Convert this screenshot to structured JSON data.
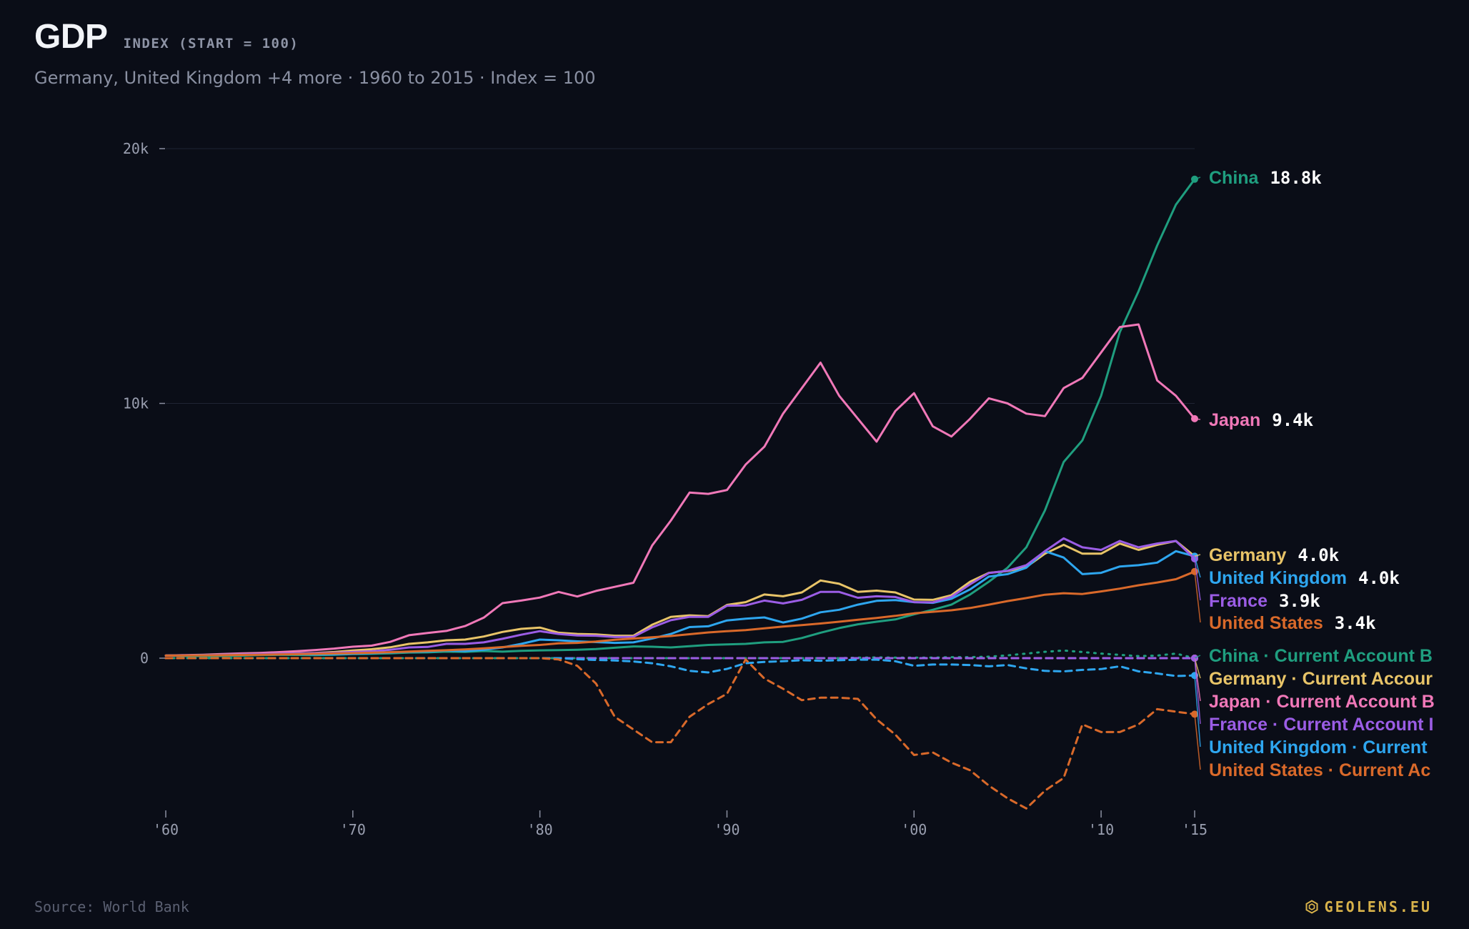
{
  "header": {
    "title": "GDP",
    "tag": "INDEX (START = 100)",
    "subtitle": "Germany, United Kingdom +4 more · 1960 to 2015 · Index = 100"
  },
  "footer": {
    "source": "Source: World Bank",
    "brand": "GEOLENS.EU",
    "brand_icon": "hexagon-logo-icon"
  },
  "colors": {
    "background": "#0a0d17",
    "China": "#1f9e7f",
    "Japan": "#f078b8",
    "Germany": "#e8c468",
    "United Kingdom": "#2ea6ef",
    "France": "#9b5de5",
    "United States": "#d9692a"
  },
  "chart_data": {
    "type": "line",
    "x": [
      1960,
      1961,
      1962,
      1963,
      1964,
      1965,
      1966,
      1967,
      1968,
      1969,
      1970,
      1971,
      1972,
      1973,
      1974,
      1975,
      1976,
      1977,
      1978,
      1979,
      1980,
      1981,
      1982,
      1983,
      1984,
      1985,
      1986,
      1987,
      1988,
      1989,
      1990,
      1991,
      1992,
      1993,
      1994,
      1995,
      1996,
      1997,
      1998,
      1999,
      2000,
      2001,
      2002,
      2003,
      2004,
      2005,
      2006,
      2007,
      2008,
      2009,
      2010,
      2011,
      2012,
      2013,
      2014,
      2015
    ],
    "xticks": [
      1960,
      1970,
      1980,
      1990,
      2000,
      2010,
      2015
    ],
    "xtick_labels": [
      "'60",
      "'70",
      "'80",
      "'90",
      "'00",
      "'10",
      "'15"
    ],
    "ylim": [
      -5500,
      20000
    ],
    "yticks": [
      0,
      10000,
      20000
    ],
    "ytick_labels": [
      "0",
      "10k",
      "20k"
    ],
    "grid": true,
    "series": [
      {
        "name": "China",
        "style": "solid",
        "end_label": "18.8k",
        "values": [
          100,
          82,
          80,
          84,
          96,
          120,
          130,
          126,
          122,
          135,
          160,
          172,
          190,
          223,
          228,
          255,
          245,
          280,
          255,
          290,
          305,
          315,
          330,
          360,
          410,
          460,
          450,
          420,
          470,
          520,
          540,
          560,
          620,
          640,
          790,
          1000,
          1180,
          1330,
          1430,
          1520,
          1720,
          1900,
          2100,
          2500,
          3000,
          3550,
          4350,
          5800,
          7700,
          8550,
          10300,
          12800,
          14400,
          16200,
          17800,
          18800
        ]
      },
      {
        "name": "Japan",
        "style": "solid",
        "end_label": "9.4k",
        "values": [
          100,
          120,
          135,
          160,
          185,
          205,
          235,
          275,
          320,
          375,
          450,
          490,
          640,
          900,
          990,
          1070,
          1260,
          1590,
          2160,
          2260,
          2380,
          2600,
          2420,
          2640,
          2800,
          2960,
          4420,
          5400,
          6500,
          6450,
          6600,
          7600,
          8300,
          9600,
          10600,
          11600,
          10300,
          9400,
          8500,
          9700,
          10400,
          9100,
          8700,
          9400,
          10200,
          10000,
          9600,
          9500,
          10600,
          11000,
          12000,
          13000,
          13100,
          10900,
          10300,
          9400
        ]
      },
      {
        "name": "Germany",
        "style": "solid",
        "end_label": "4.0k",
        "values": [
          100,
          110,
          125,
          140,
          155,
          165,
          180,
          190,
          205,
          240,
          300,
          350,
          425,
          560,
          620,
          700,
          730,
          850,
          1030,
          1150,
          1200,
          1000,
          950,
          930,
          880,
          880,
          1310,
          1620,
          1680,
          1650,
          2090,
          2200,
          2500,
          2430,
          2580,
          3050,
          2920,
          2600,
          2650,
          2580,
          2300,
          2290,
          2470,
          3000,
          3350,
          3420,
          3580,
          4100,
          4450,
          4100,
          4100,
          4500,
          4250,
          4450,
          4600,
          4000
        ]
      },
      {
        "name": "United Kingdom",
        "style": "solid",
        "end_label": "4.0k",
        "values": [
          100,
          108,
          115,
          125,
          135,
          142,
          152,
          155,
          145,
          152,
          170,
          195,
          225,
          250,
          265,
          300,
          280,
          330,
          420,
          560,
          730,
          700,
          660,
          630,
          600,
          620,
          770,
          950,
          1220,
          1250,
          1480,
          1550,
          1600,
          1400,
          1550,
          1800,
          1900,
          2100,
          2250,
          2280,
          2200,
          2170,
          2330,
          2700,
          3200,
          3300,
          3550,
          4200,
          3950,
          3300,
          3350,
          3600,
          3650,
          3750,
          4200,
          4000
        ]
      },
      {
        "name": "France",
        "style": "solid",
        "end_label": "3.9k",
        "values": [
          100,
          108,
          120,
          135,
          150,
          160,
          175,
          185,
          200,
          210,
          240,
          270,
          330,
          420,
          440,
          560,
          560,
          620,
          760,
          920,
          1060,
          950,
          890,
          880,
          830,
          840,
          1210,
          1490,
          1620,
          1620,
          2060,
          2070,
          2260,
          2150,
          2290,
          2600,
          2600,
          2370,
          2430,
          2400,
          2200,
          2190,
          2410,
          2900,
          3340,
          3430,
          3650,
          4200,
          4700,
          4350,
          4250,
          4600,
          4350,
          4500,
          4600,
          3900
        ]
      },
      {
        "name": "United States",
        "style": "solid",
        "end_label": "3.4k",
        "values": [
          100,
          103,
          110,
          116,
          125,
          136,
          148,
          157,
          172,
          185,
          195,
          212,
          235,
          262,
          285,
          310,
          345,
          385,
          435,
          485,
          520,
          580,
          600,
          650,
          720,
          770,
          820,
          870,
          940,
          1010,
          1060,
          1100,
          1170,
          1240,
          1300,
          1360,
          1430,
          1510,
          1580,
          1660,
          1760,
          1820,
          1880,
          1970,
          2100,
          2240,
          2360,
          2490,
          2550,
          2520,
          2620,
          2730,
          2860,
          2970,
          3100,
          3400
        ]
      },
      {
        "name": "China · Current Account Balance",
        "style": "dotted",
        "color_key": "China",
        "values": [
          0,
          0,
          0,
          0,
          0,
          0,
          0,
          0,
          0,
          0,
          0,
          0,
          0,
          0,
          0,
          0,
          0,
          0,
          0,
          0,
          0,
          0,
          0,
          0,
          0,
          0,
          0,
          0,
          0,
          0,
          0,
          0,
          0,
          0,
          0,
          0,
          0,
          20,
          30,
          20,
          20,
          20,
          40,
          40,
          60,
          110,
          180,
          250,
          300,
          240,
          180,
          130,
          80,
          100,
          180,
          0
        ]
      },
      {
        "name": "Germany · Current Account Balance",
        "style": "dashed",
        "color_key": "Germany",
        "values": [
          0,
          0,
          0,
          0,
          0,
          0,
          0,
          0,
          0,
          0,
          0,
          0,
          0,
          0,
          0,
          0,
          0,
          0,
          0,
          0,
          0,
          0,
          0,
          0,
          0,
          0,
          0,
          0,
          0,
          0,
          0,
          0,
          0,
          0,
          0,
          0,
          0,
          0,
          0,
          0,
          0,
          0,
          0,
          0,
          0,
          0,
          0,
          0,
          0,
          0,
          0,
          0,
          0,
          0,
          0,
          0
        ]
      },
      {
        "name": "Japan · Current Account Balance",
        "style": "dashed",
        "color_key": "Japan",
        "values": [
          0,
          0,
          0,
          0,
          0,
          0,
          0,
          0,
          0,
          0,
          0,
          0,
          0,
          0,
          0,
          0,
          0,
          0,
          0,
          0,
          0,
          0,
          0,
          0,
          0,
          0,
          0,
          0,
          0,
          0,
          0,
          0,
          0,
          0,
          0,
          0,
          0,
          0,
          0,
          0,
          0,
          0,
          0,
          0,
          0,
          0,
          0,
          0,
          0,
          0,
          0,
          0,
          0,
          0,
          0,
          0
        ]
      },
      {
        "name": "France · Current Account Balance",
        "style": "dashed",
        "color_key": "France",
        "values": [
          0,
          0,
          0,
          0,
          0,
          0,
          0,
          0,
          0,
          0,
          0,
          0,
          0,
          0,
          0,
          0,
          0,
          0,
          0,
          0,
          0,
          0,
          0,
          0,
          0,
          0,
          0,
          0,
          0,
          0,
          0,
          0,
          0,
          0,
          0,
          0,
          0,
          0,
          0,
          0,
          0,
          0,
          0,
          0,
          0,
          0,
          0,
          0,
          0,
          0,
          0,
          0,
          0,
          0,
          0,
          0
        ]
      },
      {
        "name": "United Kingdom · Current Account Balance",
        "style": "dashed",
        "color_key": "United Kingdom",
        "values": [
          0,
          0,
          0,
          0,
          0,
          0,
          0,
          0,
          0,
          0,
          0,
          0,
          0,
          0,
          0,
          0,
          0,
          0,
          0,
          0,
          0,
          0,
          -40,
          -70,
          -90,
          -130,
          -200,
          -320,
          -500,
          -560,
          -420,
          -200,
          -150,
          -120,
          -80,
          -100,
          -80,
          -60,
          -60,
          -120,
          -300,
          -250,
          -250,
          -270,
          -320,
          -270,
          -400,
          -500,
          -520,
          -460,
          -430,
          -320,
          -520,
          -600,
          -700,
          -680
        ]
      },
      {
        "name": "United States · Current Account Balance",
        "style": "dashed",
        "color_key": "United States",
        "values": [
          0,
          0,
          0,
          0,
          0,
          0,
          0,
          0,
          0,
          0,
          0,
          0,
          0,
          0,
          0,
          0,
          0,
          0,
          0,
          0,
          0,
          -50,
          -300,
          -1000,
          -2300,
          -2800,
          -3300,
          -3300,
          -2300,
          -1800,
          -1400,
          -50,
          -800,
          -1200,
          -1650,
          -1550,
          -1550,
          -1600,
          -2400,
          -3000,
          -3800,
          -3700,
          -4100,
          -4400,
          -5000,
          -5500,
          -5900,
          -5200,
          -4700,
          -2600,
          -2900,
          -2900,
          -2600,
          -2000,
          -2100,
          -2200
        ]
      }
    ],
    "labels": [
      {
        "text": "China",
        "series": "China",
        "value": "18.8k"
      },
      {
        "text": "Japan",
        "series": "Japan",
        "value": "9.4k"
      },
      {
        "text": "Germany",
        "series": "Germany",
        "value": "4.0k"
      },
      {
        "text": "United Kingdom",
        "series": "United Kingdom",
        "value": "4.0k"
      },
      {
        "text": "France",
        "series": "France",
        "value": "3.9k"
      },
      {
        "text": "United States",
        "series": "United States",
        "value": "3.4k"
      },
      {
        "text": "China · Current Account B",
        "series": "China · Current Account Balance"
      },
      {
        "text": "Germany · Current Accour",
        "series": "Germany · Current Account Balance"
      },
      {
        "text": "Japan · Current Account B",
        "series": "Japan · Current Account Balance"
      },
      {
        "text": "France · Current Account I",
        "series": "France · Current Account Balance"
      },
      {
        "text": "United Kingdom · Current",
        "series": "United Kingdom · Current Account Balance"
      },
      {
        "text": "United States · Current Ac",
        "series": "United States · Current Account Balance"
      }
    ]
  }
}
